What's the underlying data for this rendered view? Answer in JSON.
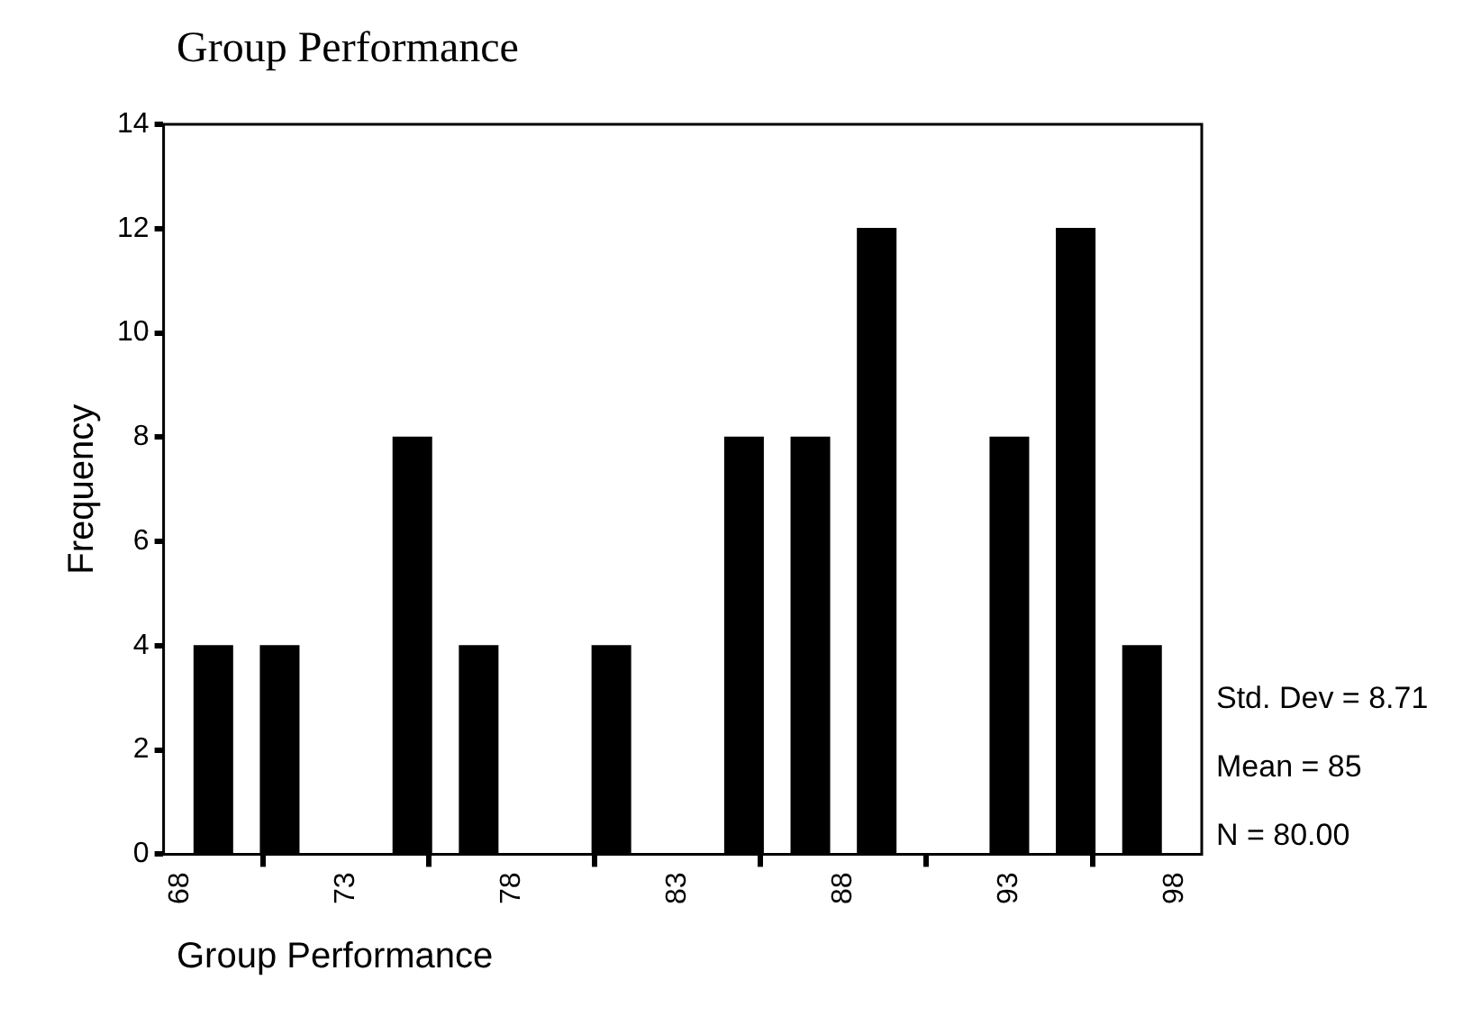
{
  "chart_data": {
    "type": "histogram",
    "title": "Group Performance",
    "xlabel": "Group Performance",
    "ylabel": "Frequency",
    "bins": [
      68,
      70,
      72,
      74,
      76,
      78,
      80,
      82,
      84,
      86,
      88,
      90,
      92,
      94,
      96,
      98
    ],
    "values": [
      4,
      4,
      0,
      8,
      4,
      0,
      4,
      0,
      8,
      8,
      12,
      0,
      8,
      12,
      4
    ],
    "color": "#000000",
    "xlim": [
      67.5,
      98.8
    ],
    "xticks": [
      68,
      73,
      78,
      83,
      88,
      93,
      98
    ],
    "ylim": [
      0,
      14
    ],
    "yticks": [
      0,
      2,
      4,
      6,
      8,
      10,
      12,
      14
    ],
    "grid": false,
    "legend": false,
    "annotations": [
      "Std. Dev = 8.71",
      "Mean = 85",
      "N = 80.00"
    ]
  }
}
